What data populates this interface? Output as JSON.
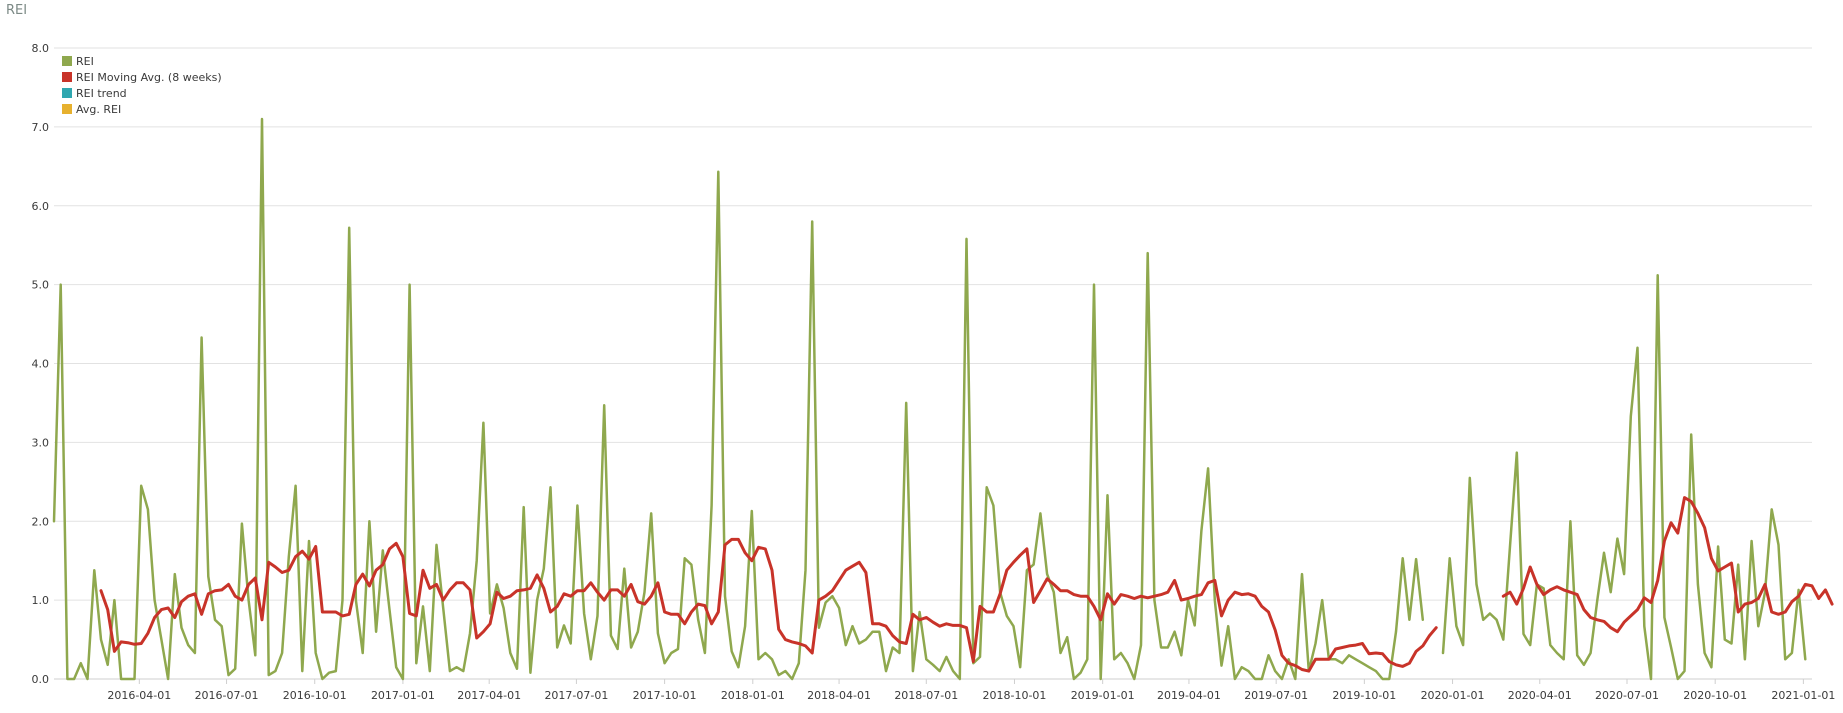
{
  "panel": {
    "title": "REI"
  },
  "chart_data": {
    "type": "line",
    "title": "REI",
    "xlabel": "",
    "ylabel": "",
    "ylim": [
      0,
      8
    ],
    "y_ticks": [
      "0.0",
      "1.0",
      "2.0",
      "3.0",
      "4.0",
      "5.0",
      "6.0",
      "7.0",
      "8.0"
    ],
    "x_range": [
      "2016-01-03",
      "2021-01-10"
    ],
    "x_ticks": [
      "2016-04-01",
      "2016-07-01",
      "2016-10-01",
      "2017-01-01",
      "2017-04-01",
      "2017-07-01",
      "2017-10-01",
      "2018-01-01",
      "2018-04-01",
      "2018-07-01",
      "2018-10-01",
      "2019-01-01",
      "2019-04-01",
      "2019-07-01",
      "2019-10-01",
      "2020-01-01",
      "2020-04-01",
      "2020-07-01",
      "2020-10-01",
      "2021-01-01"
    ],
    "grid": "horizontal",
    "legend_position": "top-left",
    "series_start": "2016-01-03",
    "series_interval": "weekly",
    "series": [
      {
        "name": "REI",
        "color": "#8fa84e",
        "values": [
          2.0,
          5.0,
          0.0,
          0.0,
          0.2,
          0.0,
          1.38,
          0.5,
          0.18,
          1.0,
          0.0,
          0.0,
          0.0,
          2.45,
          2.15,
          1.0,
          0.5,
          0.0,
          1.33,
          0.65,
          0.43,
          0.33,
          4.33,
          1.3,
          0.75,
          0.67,
          0.05,
          0.13,
          1.97,
          1.0,
          0.3,
          7.1,
          0.05,
          0.1,
          0.33,
          1.55,
          2.45,
          0.1,
          1.75,
          0.33,
          0.0,
          0.08,
          0.1,
          1.0,
          5.72,
          1.0,
          0.33,
          2.0,
          0.6,
          1.63,
          0.88,
          0.15,
          0.0,
          5.0,
          0.2,
          0.92,
          0.1,
          1.7,
          0.9,
          0.1,
          0.15,
          0.1,
          0.58,
          1.5,
          3.25,
          0.83,
          1.2,
          0.9,
          0.33,
          0.13,
          2.18,
          0.08,
          1.0,
          1.4,
          2.43,
          0.4,
          0.68,
          0.45,
          2.2,
          0.83,
          0.25,
          0.8,
          3.47,
          0.55,
          0.38,
          1.4,
          0.4,
          0.6,
          1.1,
          2.1,
          0.58,
          0.2,
          0.33,
          0.38,
          1.53,
          1.45,
          0.75,
          0.33,
          2.2,
          6.43,
          1.05,
          0.35,
          0.15,
          0.67,
          2.13,
          0.25,
          0.33,
          0.25,
          0.05,
          0.1,
          0.0,
          0.2,
          1.38,
          5.8,
          0.65,
          0.97,
          1.05,
          0.9,
          0.43,
          0.67,
          0.45,
          0.5,
          0.6,
          0.6,
          0.1,
          0.4,
          0.33,
          3.5,
          0.1,
          0.85,
          0.25,
          0.18,
          0.1,
          0.28,
          0.1,
          0.0,
          5.58,
          0.2,
          0.28,
          2.43,
          2.2,
          1.1,
          0.8,
          0.67,
          0.15,
          1.38,
          1.45,
          2.1,
          1.33,
          1.1,
          0.33,
          0.53,
          0.0,
          0.08,
          0.25,
          5.0,
          0.0,
          2.33,
          0.25,
          0.33,
          0.2,
          0.0,
          0.43,
          5.4,
          1.0,
          0.4,
          0.4,
          0.6,
          0.3,
          1.0,
          0.68,
          1.88,
          2.67,
          1.0,
          0.17,
          0.67,
          0.0,
          0.15,
          0.1,
          0.0,
          0.0,
          0.3,
          0.1,
          0.0,
          0.25,
          0.0,
          1.33,
          0.1,
          0.45,
          1.0,
          0.25,
          0.25,
          0.2,
          0.3,
          0.25,
          0.2,
          0.15,
          0.1,
          0.0,
          0.0,
          0.6,
          1.53,
          0.75,
          1.52,
          0.75,
          null,
          null,
          0.33,
          1.53,
          0.67,
          0.43,
          2.55,
          1.2,
          0.75,
          0.83,
          0.75,
          0.5,
          1.7,
          2.87,
          0.57,
          0.43,
          1.2,
          1.15,
          0.43,
          0.33,
          0.25,
          2.0,
          0.3,
          0.18,
          0.33,
          1.0,
          1.6,
          1.1,
          1.78,
          1.33,
          3.33,
          4.2,
          0.67,
          0.0,
          5.12,
          0.78,
          0.4,
          0.0,
          0.1,
          3.1,
          1.2,
          0.33,
          0.15,
          1.68,
          0.5,
          0.45,
          1.45,
          0.25,
          1.75,
          0.67,
          1.1,
          2.15,
          1.7,
          0.25,
          0.33,
          1.13,
          0.25
        ]
      },
      {
        "name": "REI Moving Avg. (8 weeks)",
        "color": "#c83329",
        "values": [
          null,
          null,
          null,
          null,
          null,
          null,
          null,
          1.12,
          0.88,
          0.35,
          0.47,
          0.46,
          0.44,
          0.45,
          0.58,
          0.78,
          0.88,
          0.9,
          0.78,
          0.98,
          1.05,
          1.08,
          0.82,
          1.08,
          1.12,
          1.13,
          1.2,
          1.05,
          1.0,
          1.2,
          1.28,
          0.75,
          1.48,
          1.42,
          1.35,
          1.38,
          1.55,
          1.62,
          1.52,
          1.68,
          0.85,
          0.85,
          0.85,
          0.8,
          0.82,
          1.2,
          1.33,
          1.18,
          1.38,
          1.45,
          1.65,
          1.72,
          1.55,
          0.83,
          0.8,
          1.38,
          1.15,
          1.2,
          1.0,
          1.13,
          1.22,
          1.22,
          1.13,
          0.52,
          0.6,
          0.7,
          1.1,
          1.02,
          1.05,
          1.12,
          1.13,
          1.15,
          1.32,
          1.15,
          0.85,
          0.92,
          1.08,
          1.05,
          1.12,
          1.12,
          1.22,
          1.1,
          1.0,
          1.13,
          1.13,
          1.05,
          1.2,
          0.98,
          0.95,
          1.05,
          1.22,
          0.85,
          0.82,
          0.82,
          0.7,
          0.85,
          0.95,
          0.93,
          0.7,
          0.85,
          1.7,
          1.77,
          1.77,
          1.6,
          1.5,
          1.67,
          1.65,
          1.38,
          0.63,
          0.5,
          0.47,
          0.45,
          0.42,
          0.33,
          1.0,
          1.05,
          1.12,
          1.25,
          1.38,
          1.43,
          1.48,
          1.35,
          0.7,
          0.7,
          0.67,
          0.55,
          0.47,
          0.45,
          0.82,
          0.75,
          0.78,
          0.72,
          0.67,
          0.7,
          0.68,
          0.68,
          0.65,
          0.22,
          0.92,
          0.85,
          0.85,
          1.08,
          1.38,
          1.48,
          1.57,
          1.65,
          0.97,
          1.12,
          1.27,
          1.2,
          1.12,
          1.12,
          1.07,
          1.05,
          1.05,
          0.92,
          0.75,
          1.08,
          0.95,
          1.07,
          1.05,
          1.02,
          1.05,
          1.03,
          1.05,
          1.07,
          1.1,
          1.25,
          1.0,
          1.02,
          1.05,
          1.07,
          1.22,
          1.25,
          0.8,
          1.0,
          1.1,
          1.07,
          1.08,
          1.05,
          0.92,
          0.85,
          0.62,
          0.3,
          0.2,
          0.17,
          0.12,
          0.1,
          0.25,
          0.25,
          0.25,
          0.38,
          0.4,
          0.42,
          0.43,
          0.45,
          0.32,
          0.33,
          0.32,
          0.22,
          0.18,
          0.16,
          0.2,
          0.35,
          0.42,
          0.55,
          0.65,
          null,
          null,
          null,
          null,
          null,
          null,
          null,
          null,
          null,
          1.05,
          1.1,
          0.95,
          1.15,
          1.42,
          1.2,
          1.07,
          1.13,
          1.17,
          1.13,
          1.1,
          1.07,
          0.88,
          0.78,
          0.75,
          0.73,
          0.65,
          0.6,
          0.72,
          0.8,
          0.88,
          1.03,
          0.97,
          1.25,
          1.75,
          1.98,
          1.85,
          2.3,
          2.25,
          2.1,
          1.92,
          1.53,
          1.37,
          1.42,
          1.47,
          0.85,
          0.95,
          0.97,
          1.02,
          1.2,
          0.85,
          0.82,
          0.85,
          0.98,
          1.05,
          1.2,
          1.18,
          1.02,
          1.13,
          0.95
        ]
      },
      {
        "name": "REI trend",
        "color": "#2fa7b0",
        "values": []
      },
      {
        "name": "Avg. REI",
        "color": "#e7b12e",
        "values": []
      }
    ]
  },
  "style": {
    "grid_color": "#e2e2e2",
    "axis_color": "#cfcfcf"
  }
}
